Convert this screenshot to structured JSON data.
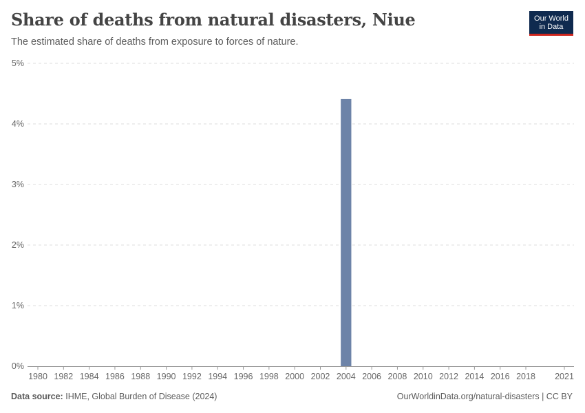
{
  "header": {
    "title": "Share of deaths from natural disasters, Niue",
    "subtitle": "The estimated share of deaths from exposure to forces of nature."
  },
  "logo": {
    "line1": "Our World",
    "line2": "in Data",
    "bg_color": "#0f2a4f",
    "accent_color": "#ce261e"
  },
  "footer": {
    "source_label": "Data source:",
    "source_text": "IHME, Global Burden of Disease (2024)",
    "right_text": "OurWorldinData.org/natural-disasters | CC BY"
  },
  "chart_data": {
    "type": "bar",
    "x_min": 1980,
    "x_max": 2021,
    "x_ticks": [
      1980,
      1982,
      1984,
      1986,
      1988,
      1990,
      1992,
      1994,
      1996,
      1998,
      2000,
      2002,
      2004,
      2006,
      2008,
      2010,
      2012,
      2014,
      2016,
      2018,
      2021
    ],
    "y_ticks": [
      {
        "value": 0,
        "label": "0%"
      },
      {
        "value": 1,
        "label": "1%"
      },
      {
        "value": 2,
        "label": "2%"
      },
      {
        "value": 3,
        "label": "3%"
      },
      {
        "value": 4,
        "label": "4%"
      },
      {
        "value": 5,
        "label": "5%"
      }
    ],
    "ylim": [
      0,
      5
    ],
    "grid": true,
    "bar_color": "#6d83a8",
    "points": [
      {
        "year": 2004,
        "value": 4.41
      }
    ]
  }
}
